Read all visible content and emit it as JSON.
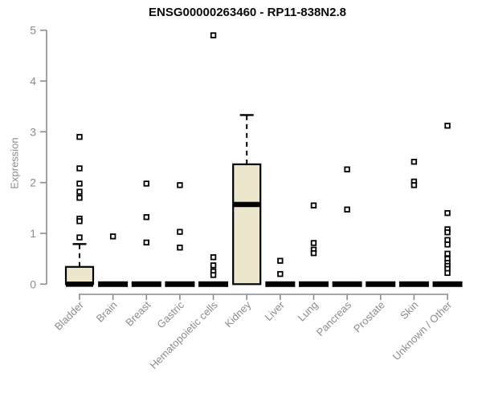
{
  "chart_data": {
    "type": "boxplot",
    "title": "ENSG00000263460 - RP11-838N2.8",
    "ylabel": "Expression",
    "xlabel": "",
    "ylim": [
      0,
      5
    ],
    "yticks": [
      0,
      1,
      2,
      3,
      4,
      5
    ],
    "grid": "off",
    "legend": "none",
    "categories": [
      "Bladder",
      "Brain",
      "Breast",
      "Gastric",
      "Hematopoietic cells",
      "Kidney",
      "Liver",
      "Lung",
      "Pancreas",
      "Prostate",
      "Skin",
      "Unknown / Other"
    ],
    "series": [
      {
        "name": "Bladder",
        "whisker_low": 0,
        "q1": 0,
        "median": 0,
        "q3": 0.34,
        "whisker_high": 0.79,
        "outliers": [
          2.9,
          2.28,
          1.98,
          1.82,
          1.7,
          1.29,
          1.24,
          0.92
        ]
      },
      {
        "name": "Brain",
        "whisker_low": 0,
        "q1": 0,
        "median": 0,
        "q3": 0,
        "whisker_high": 0,
        "outliers": [
          0.94
        ]
      },
      {
        "name": "Breast",
        "whisker_low": 0,
        "q1": 0,
        "median": 0,
        "q3": 0,
        "whisker_high": 0,
        "outliers": [
          1.98,
          1.32,
          0.82
        ]
      },
      {
        "name": "Gastric",
        "whisker_low": 0,
        "q1": 0,
        "median": 0,
        "q3": 0,
        "whisker_high": 0,
        "outliers": [
          1.95,
          1.03,
          0.72
        ]
      },
      {
        "name": "Hematopoietic cells",
        "whisker_low": 0,
        "q1": 0,
        "median": 0,
        "q3": 0,
        "whisker_high": 0,
        "outliers": [
          4.9,
          0.53,
          0.37,
          0.25,
          0.18
        ]
      },
      {
        "name": "Kidney",
        "whisker_low": 0,
        "q1": 0,
        "median": 1.57,
        "q3": 2.36,
        "whisker_high": 3.33,
        "outliers": []
      },
      {
        "name": "Liver",
        "whisker_low": 0,
        "q1": 0,
        "median": 0,
        "q3": 0,
        "whisker_high": 0,
        "outliers": [
          0.46,
          0.2
        ]
      },
      {
        "name": "Lung",
        "whisker_low": 0,
        "q1": 0,
        "median": 0,
        "q3": 0,
        "whisker_high": 0,
        "outliers": [
          1.55,
          0.81,
          0.68,
          0.61
        ]
      },
      {
        "name": "Pancreas",
        "whisker_low": 0,
        "q1": 0,
        "median": 0,
        "q3": 0,
        "whisker_high": 0,
        "outliers": [
          2.26,
          1.47
        ]
      },
      {
        "name": "Prostate",
        "whisker_low": 0,
        "q1": 0,
        "median": 0,
        "q3": 0,
        "whisker_high": 0,
        "outliers": []
      },
      {
        "name": "Skin",
        "whisker_low": 0,
        "q1": 0,
        "median": 0,
        "q3": 0,
        "whisker_high": 0,
        "outliers": [
          2.41,
          2.02,
          1.95
        ]
      },
      {
        "name": "Unknown / Other",
        "whisker_low": 0,
        "q1": 0,
        "median": 0,
        "q3": 0,
        "whisker_high": 0,
        "outliers": [
          3.12,
          1.4,
          1.08,
          1.02,
          0.87,
          0.78,
          0.6,
          0.5,
          0.42,
          0.36,
          0.3,
          0.22
        ]
      }
    ],
    "colors": {
      "box_fill": "#ECE6CC",
      "box_border": "#000000",
      "median": "#000000",
      "whisker": "#000000",
      "outlier_stroke": "#000000",
      "outlier_fill": "#FFFFFF",
      "axis": "#8C8C8C",
      "tick_label": "#8C8C8C",
      "title": "#0A0A0A",
      "background": "#FFFFFF"
    }
  }
}
